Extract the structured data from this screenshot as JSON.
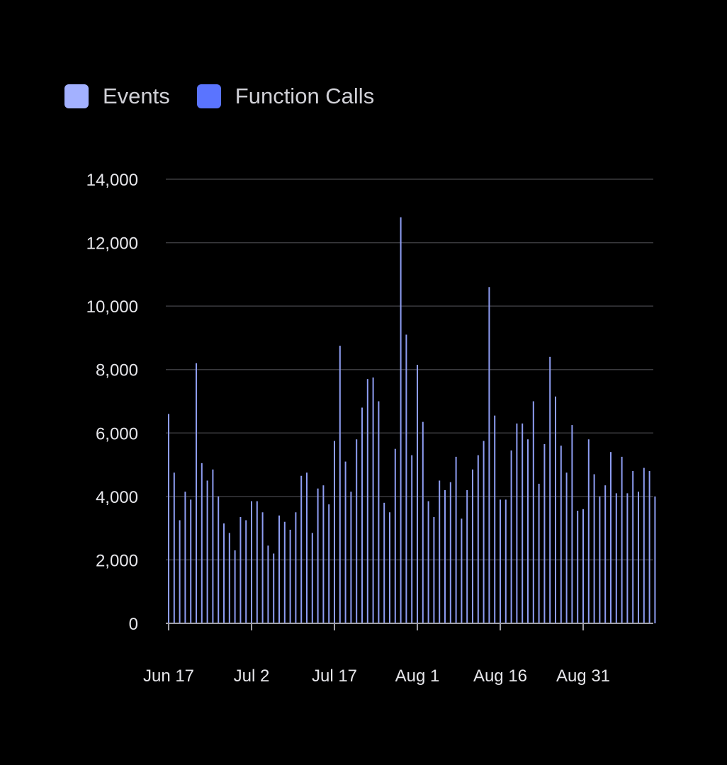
{
  "colors": {
    "events": "#a3b1ff",
    "function_calls": "#5a74ff",
    "bar": "#8e9df2",
    "grid": "#3a3a3e",
    "axis": "#a0a0a8",
    "text": "#e6e6ea"
  },
  "legend": [
    {
      "label": "Events",
      "color": "#a3b1ff"
    },
    {
      "label": "Function Calls",
      "color": "#5a74ff"
    }
  ],
  "chart_data": {
    "type": "bar",
    "title": "",
    "xlabel": "",
    "ylabel": "",
    "ylim": [
      0,
      14000
    ],
    "y_ticks": [
      "0",
      "2,000",
      "4,000",
      "6,000",
      "8,000",
      "10,000",
      "12,000",
      "14,000"
    ],
    "x_ticks": [
      "Jun 17",
      "Jul 2",
      "Jul 17",
      "Aug 1",
      "Aug 16",
      "Aug 31"
    ],
    "grid": true,
    "legend_position": "top-left",
    "start_date": "Jun 17",
    "series": [
      {
        "name": "Events",
        "values": [
          6600,
          4750,
          3250,
          4150,
          3900,
          8200,
          5050,
          4500,
          4850,
          4000,
          3150,
          2850,
          2300,
          3350,
          3250,
          3850,
          3850,
          3500,
          2450,
          2200,
          3400,
          3200,
          2950,
          3500,
          4650,
          4750,
          2850,
          4250,
          4350,
          3750,
          5750,
          8750,
          5100,
          4150,
          5800,
          6800,
          7700,
          7750,
          7000,
          3800,
          3500,
          5500,
          12800,
          9100,
          5300,
          8150,
          6350,
          3850,
          3350,
          4500,
          4200,
          4450,
          5250,
          3300,
          4200,
          4850,
          5300,
          5750,
          10600,
          6550,
          3900,
          3900,
          5450,
          6300,
          6300,
          5800,
          7000,
          4400,
          5650,
          8400,
          7150,
          5600,
          4750,
          6250,
          3550,
          3600,
          5800,
          4700,
          4000,
          4350,
          5400,
          4100,
          5250,
          4100,
          4800,
          4150,
          4900,
          4800,
          4000
        ]
      }
    ]
  }
}
